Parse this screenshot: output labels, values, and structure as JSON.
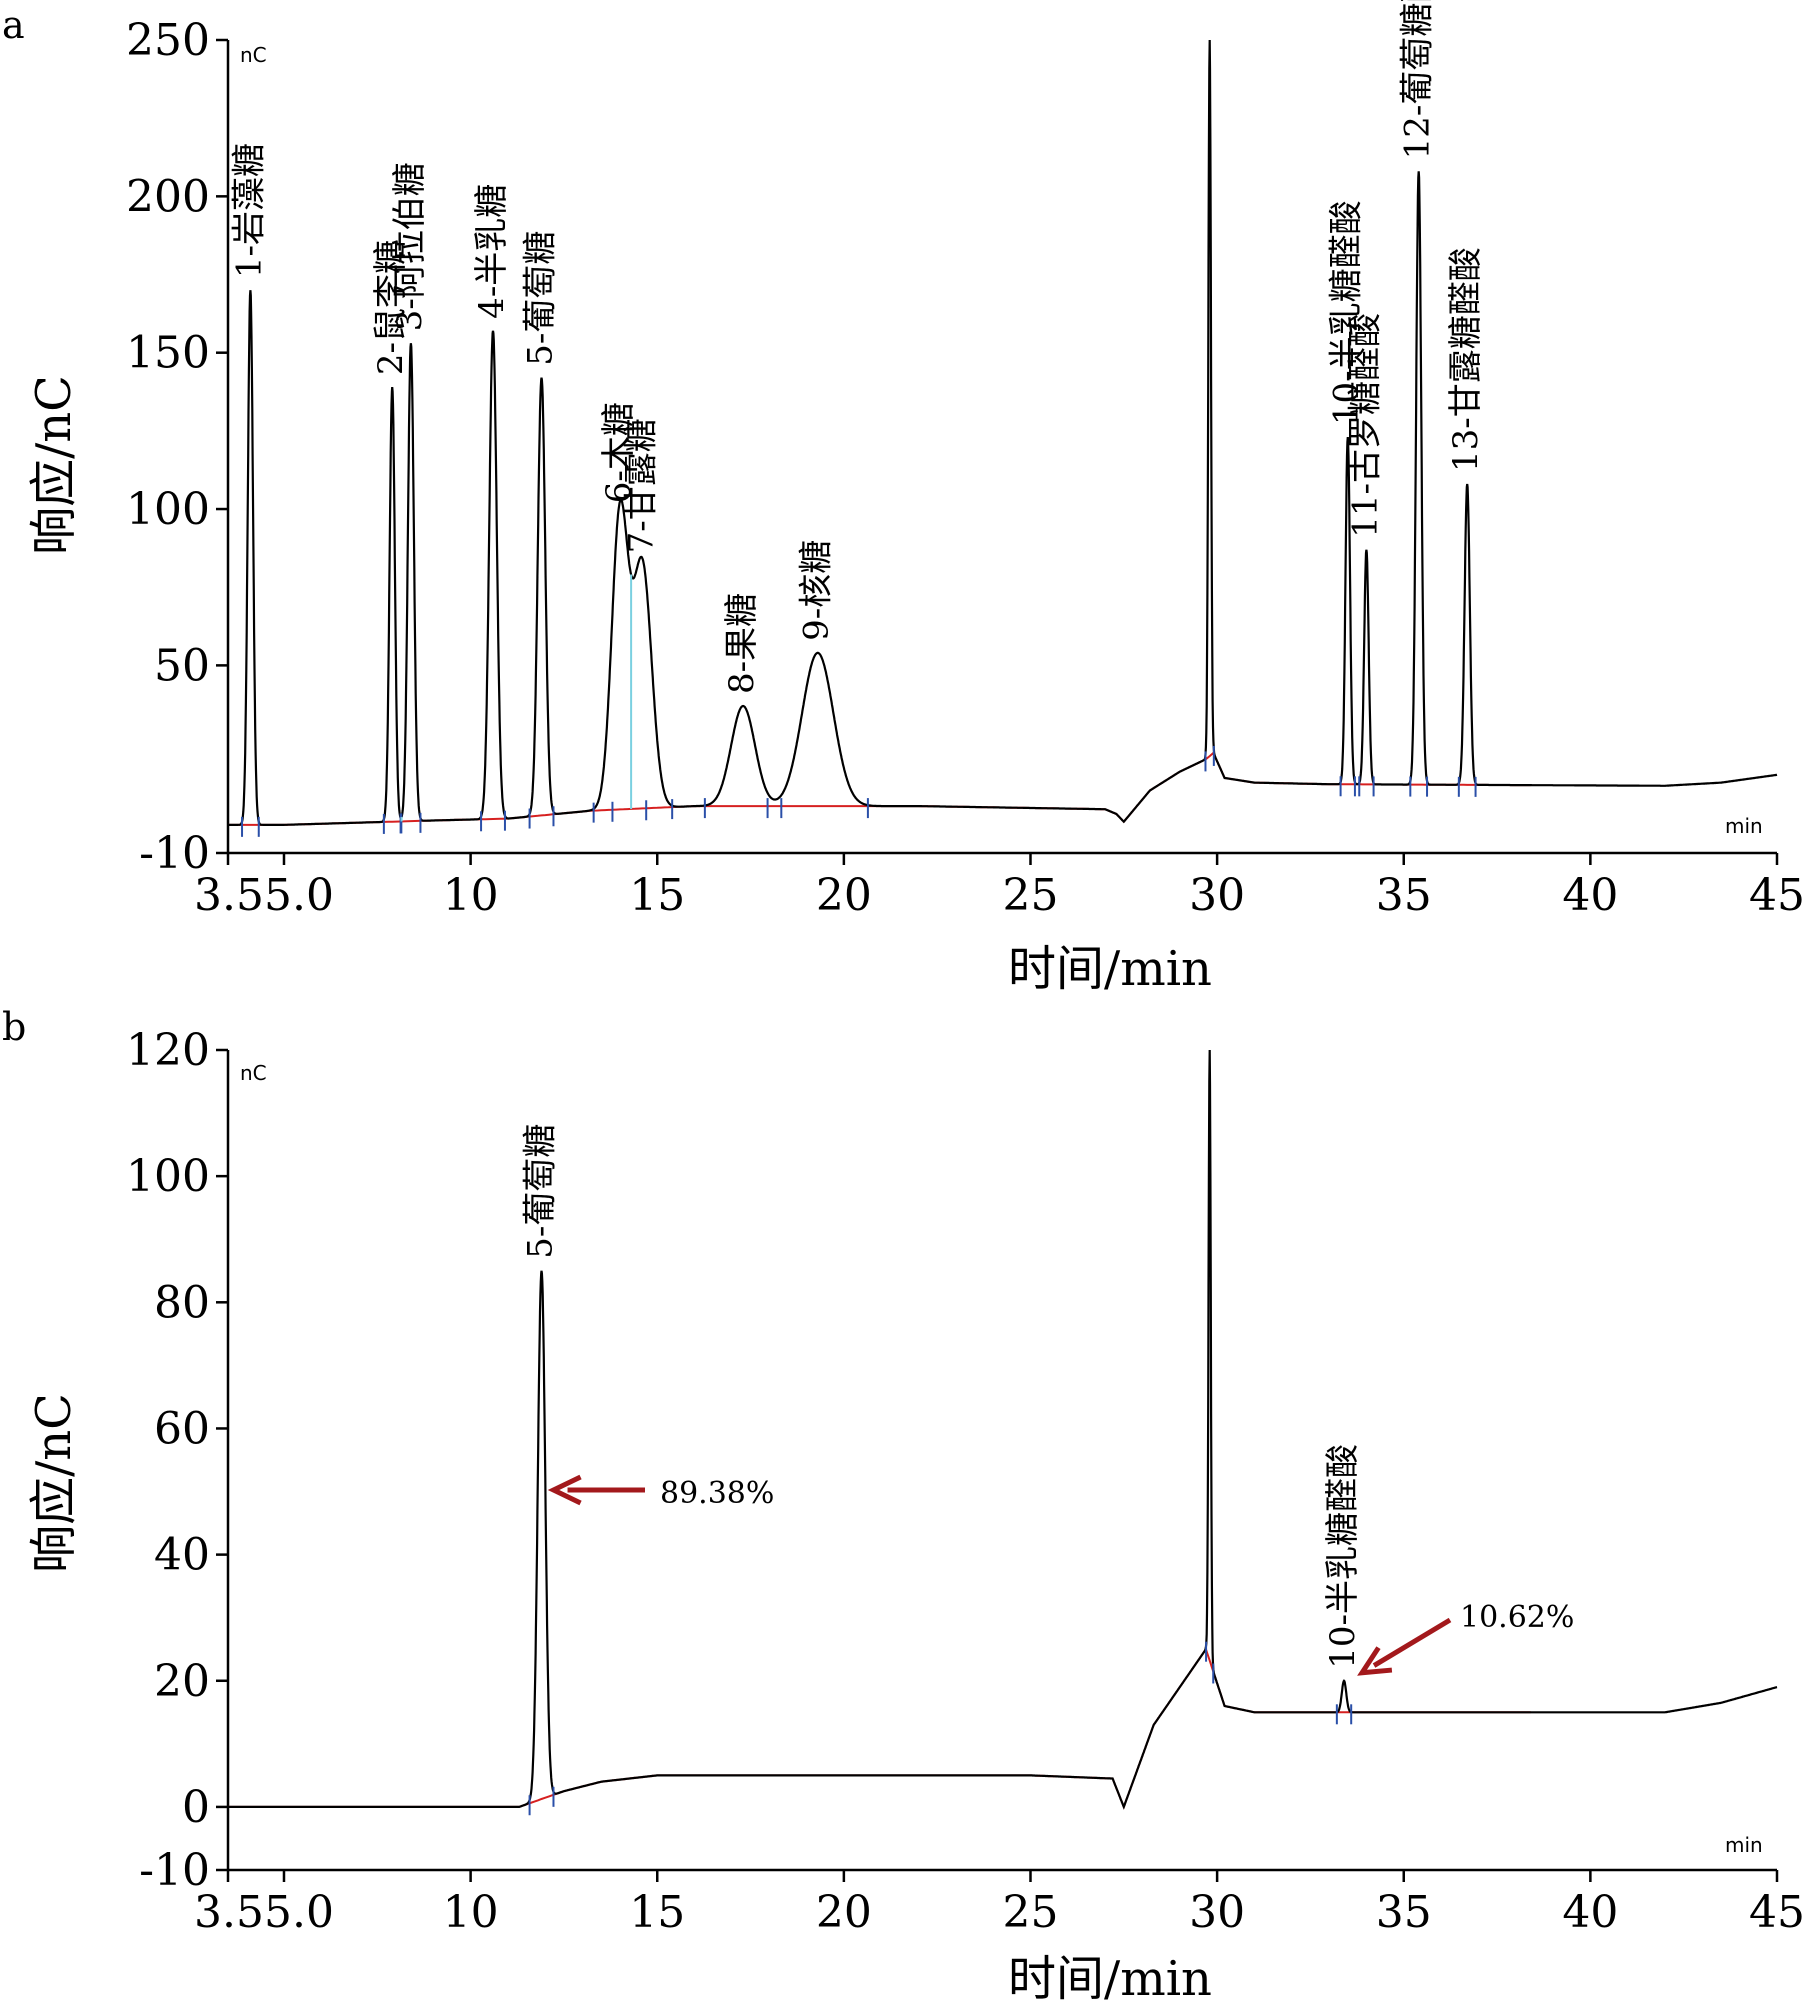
{
  "chart_data": [
    {
      "panel_label": "a",
      "type": "line",
      "xlabel": "时间/min",
      "ylabel": "响应/nC",
      "unit_top": "nC",
      "unit_right": "min",
      "xlim": [
        3.5,
        45
      ],
      "ylim": [
        -10,
        250
      ],
      "x_ticks": [
        {
          "value": 5.0,
          "label": "3.55.0"
        },
        {
          "value": 10,
          "label": "10"
        },
        {
          "value": 15,
          "label": "15"
        },
        {
          "value": 20,
          "label": "20"
        },
        {
          "value": 25,
          "label": "25"
        },
        {
          "value": 30,
          "label": "30"
        },
        {
          "value": 35,
          "label": "35"
        },
        {
          "value": 40,
          "label": "40"
        },
        {
          "value": 45,
          "label": "45"
        }
      ],
      "y_ticks": [
        -10,
        50,
        100,
        150,
        200,
        250
      ],
      "baseline": [
        [
          3.5,
          -1
        ],
        [
          5,
          -1
        ],
        [
          9,
          0.4
        ],
        [
          11,
          1
        ],
        [
          13.2,
          3.5
        ],
        [
          16,
          5
        ],
        [
          22,
          5
        ],
        [
          27,
          4
        ],
        [
          27.3,
          2.5
        ],
        [
          27.5,
          0
        ],
        [
          28.2,
          10
        ],
        [
          29,
          16
        ],
        [
          29.7,
          20
        ],
        [
          29.9,
          22
        ],
        [
          30.2,
          14
        ],
        [
          31,
          12.5
        ],
        [
          33,
          12
        ],
        [
          42,
          11.5
        ],
        [
          43.5,
          12.5
        ],
        [
          45,
          15
        ]
      ],
      "peaks": [
        {
          "x": 4.1,
          "y": 170,
          "width": 0.07,
          "label": "1-岩藻糖"
        },
        {
          "x": 7.9,
          "y": 139,
          "width": 0.07,
          "label": "2-鼠李糖"
        },
        {
          "x": 8.4,
          "y": 153,
          "width": 0.08,
          "label": "3-阿拉伯糖"
        },
        {
          "x": 10.6,
          "y": 157,
          "width": 0.1,
          "label": "4-半乳糖"
        },
        {
          "x": 11.9,
          "y": 142,
          "width": 0.1,
          "label": "5-葡萄糖"
        },
        {
          "x": 14.0,
          "y": 98,
          "width": 0.22,
          "label": "6-木糖"
        },
        {
          "x": 14.6,
          "y": 82,
          "width": 0.25,
          "label": "7-甘露糖"
        },
        {
          "x": 17.3,
          "y": 37,
          "width": 0.32,
          "label": "8-果糖"
        },
        {
          "x": 19.3,
          "y": 54,
          "width": 0.42,
          "label": "9-核糖"
        },
        {
          "x": 29.8,
          "y": 250,
          "width": 0.035,
          "label": ""
        },
        {
          "x": 33.5,
          "y": 123,
          "width": 0.06,
          "label": "10-半乳糖醛酸"
        },
        {
          "x": 34.0,
          "y": 87,
          "width": 0.06,
          "label": "11-古罗糖醛酸"
        },
        {
          "x": 35.4,
          "y": 208,
          "width": 0.07,
          "label": "12-葡萄糖醛酸"
        },
        {
          "x": 36.7,
          "y": 108,
          "width": 0.07,
          "label": "13-甘露糖醛酸"
        }
      ]
    },
    {
      "panel_label": "b",
      "type": "line",
      "xlabel": "时间/min",
      "ylabel": "响应/nC",
      "unit_top": "nC",
      "unit_right": "min",
      "xlim": [
        3.5,
        45
      ],
      "ylim": [
        -10,
        120
      ],
      "x_ticks": [
        {
          "value": 5.0,
          "label": "3.55.0"
        },
        {
          "value": 10,
          "label": "10"
        },
        {
          "value": 15,
          "label": "15"
        },
        {
          "value": 20,
          "label": "20"
        },
        {
          "value": 25,
          "label": "25"
        },
        {
          "value": 30,
          "label": "30"
        },
        {
          "value": 35,
          "label": "35"
        },
        {
          "value": 40,
          "label": "40"
        },
        {
          "value": 45,
          "label": "45"
        }
      ],
      "y_ticks": [
        -10,
        0,
        20,
        40,
        60,
        80,
        100,
        120
      ],
      "baseline": [
        [
          3.5,
          0
        ],
        [
          11.3,
          0
        ],
        [
          12.5,
          2.5
        ],
        [
          13.5,
          4
        ],
        [
          15,
          5
        ],
        [
          25,
          5
        ],
        [
          27.2,
          4.5
        ],
        [
          27.5,
          0
        ],
        [
          28.3,
          13
        ],
        [
          29.7,
          25
        ],
        [
          30.2,
          16
        ],
        [
          31,
          15
        ],
        [
          42,
          15
        ],
        [
          42.5,
          15.5
        ],
        [
          43.5,
          16.5
        ],
        [
          45,
          19
        ]
      ],
      "peaks": [
        {
          "x": 11.9,
          "y": 85,
          "width": 0.1,
          "label": "5-葡萄糖",
          "percent": "89.38%"
        },
        {
          "x": 29.8,
          "y": 120,
          "width": 0.03,
          "label": ""
        },
        {
          "x": 33.4,
          "y": 20,
          "width": 0.06,
          "label": "10-半乳糖醛酸",
          "percent": "10.62%"
        }
      ]
    }
  ]
}
